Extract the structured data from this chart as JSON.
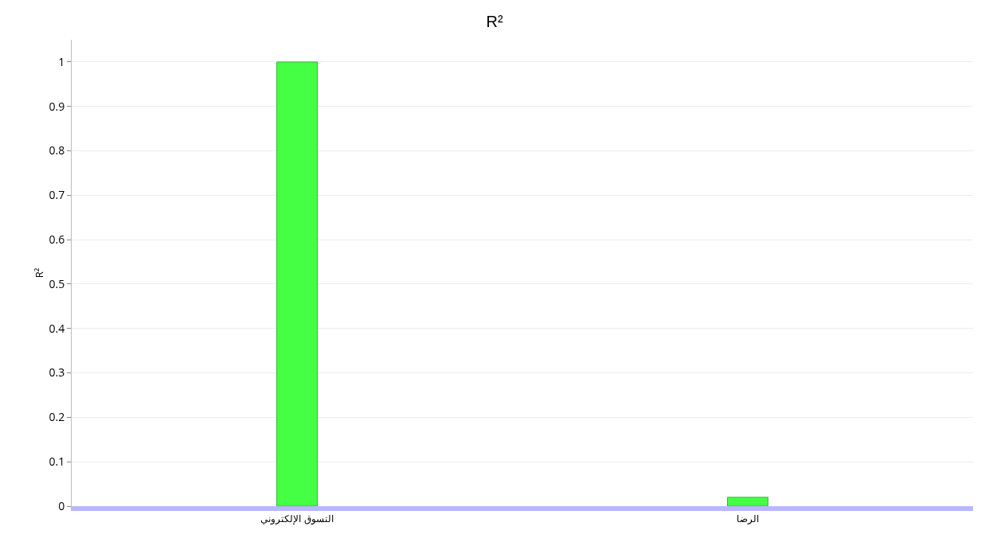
{
  "chart_data": {
    "type": "bar",
    "title": "R²",
    "ylabel": "R²",
    "categories": [
      "التسوق الإلكتروني",
      "الرضا"
    ],
    "values": [
      1,
      0.02
    ],
    "color": "#44ff44",
    "ylim": [
      0,
      1.05
    ],
    "yticks": [
      0,
      0.1,
      0.2,
      0.3,
      0.4,
      0.5,
      0.6,
      0.7,
      0.8,
      0.9,
      1
    ],
    "grid": "y"
  }
}
